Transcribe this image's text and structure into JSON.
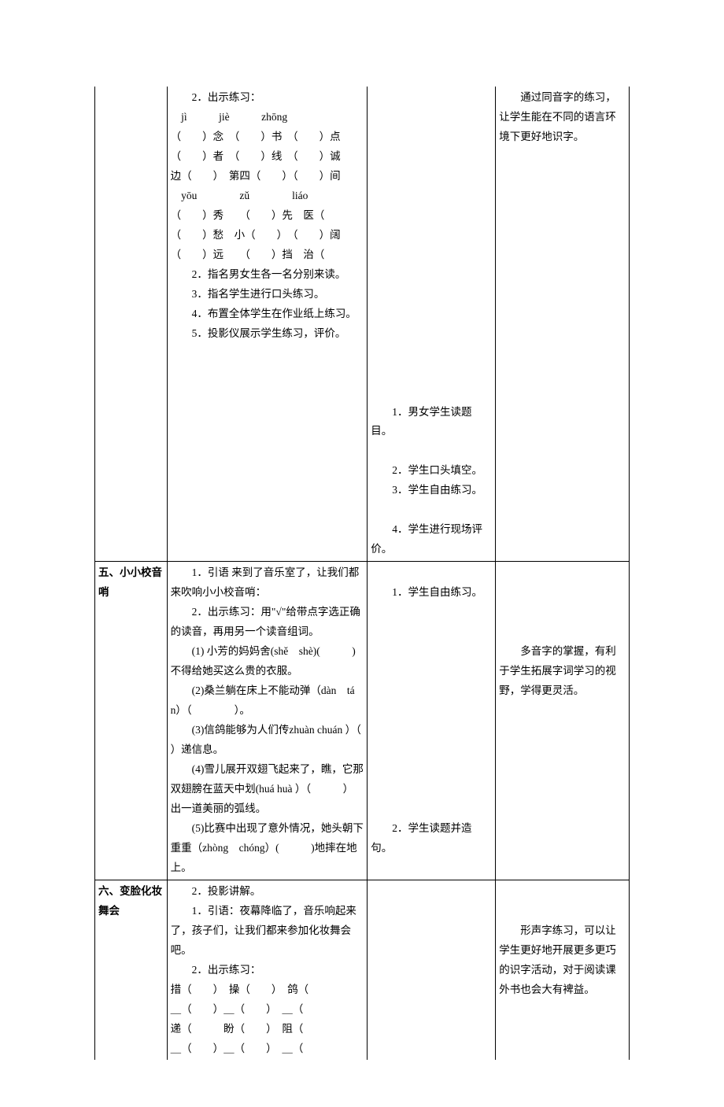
{
  "rows": [
    {
      "label": "",
      "teacher": [
        "　　2．出示练习：",
        "　jì　　　jiè　　　zhōng",
        "（　　）念　（　　）书　（　　）点",
        "（　　）者　（　　）线　（　　）诚",
        "边（　　）　第四（　　）（　　）间",
        "　yōu　　　　zǔ　　　　liáo",
        "（　　）秀　　（　　）先　医（",
        "（　　）愁　小（　　）　（　　）阔",
        "（　　）远　　（　　）挡　治（",
        "　　2．指名男女生各一名分别来读。",
        "　　3．指名学生进行口头练习。",
        "　　4．布置全体学生在作业纸上练习。",
        "　　5．投影仪展示学生练习，评价。"
      ],
      "student": [
        "",
        "",
        "",
        "",
        "",
        "",
        "",
        "",
        "　　1．男女学生读题目。",
        "",
        "　　2．学生口头填空。",
        "　　3．学生自由练习。",
        "",
        "　　4．学生进行现场评价。"
      ],
      "note": [
        "　　通过同音字的练习，让学生能在不同的语言环境下更好地识字。"
      ]
    },
    {
      "label": "五、小小校音哨",
      "teacher": [
        "　　1．引语 来到了音乐室了，让我们都来吹响小小校音哨：",
        "　　2．出示练习：用\"√\"给带点字选正确的读音，再用另一个读音组词。",
        "　　(1) 小芳的妈妈舍(shě　shè)(　　　)不得给她买这么贵的衣服。",
        "　　(2)桑兰躺在床上不能动弹（dàn　tán）（　　　　）。",
        "　　(3)信鸽能够为人们传zhuàn chuán ）（　　　）递信息。",
        "　　(4)雪儿展开双翅飞起来了，瞧，它那双翅膀在蓝天中划(huá huà ）（　　　）出一道美丽的弧线。",
        "　　(5)比赛中出现了意外情况，她头朝下重重（zhòng　chóng）(　　　)地摔在地上。"
      ],
      "student": [
        "",
        "　　1．学生自由练习。",
        "",
        "",
        "",
        "",
        "",
        "",
        "",
        "",
        "",
        "",
        "",
        "　　2．学生读题并造句。"
      ],
      "note": [
        "",
        "",
        "",
        "",
        "　　多音字的掌握，有利于学生拓展字词学习的视野，学得更灵活。"
      ]
    },
    {
      "label": "六、变脸化妆舞会",
      "teacher": [
        "　　2．投影讲解。",
        "　　1．引语：夜幕降临了，音乐响起来了，孩子们，让我们都来参加化妆舞会吧。",
        "　　2．出示练习：",
        "措（　　）　操（　　）　鸽（",
        "＿（　　）＿（　　）　＿（",
        "递（　　　盼（　　）　阻（",
        "＿（　　）＿（　　）　＿（"
      ],
      "student": [
        ""
      ],
      "note": [
        "",
        "",
        "　　形声字练习，可以让学生更好地开展更多更巧的识字活动，对于阅读课外书也会大有裨益。"
      ]
    }
  ],
  "style": {
    "border_color": "#000000",
    "bg_color": "#ffffff",
    "text_color": "#000000",
    "cell_fontsize": 13.5,
    "line_height": 1.85,
    "col_widths_pct": [
      13.5,
      37.5,
      24,
      25
    ]
  }
}
